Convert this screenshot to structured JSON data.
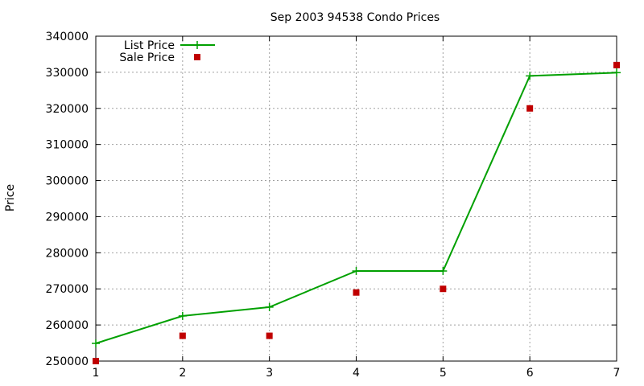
{
  "chart_data": {
    "type": "line",
    "title": "Sep 2003 94538 Condo Prices",
    "xlabel": "",
    "ylabel": "Price",
    "x": [
      1,
      2,
      3,
      4,
      5,
      6,
      7
    ],
    "xlim": [
      1,
      7
    ],
    "ylim": [
      250000,
      340000
    ],
    "xticks": [
      "1",
      "2",
      "3",
      "4",
      "5",
      "6",
      "7"
    ],
    "yticks": [
      "250000",
      "260000",
      "270000",
      "280000",
      "290000",
      "300000",
      "310000",
      "320000",
      "330000",
      "340000"
    ],
    "grid": true,
    "legend_position": "top-left",
    "series": [
      {
        "name": "List Price",
        "style": "linespoints",
        "marker": "plus",
        "color": "#00a000",
        "values": [
          254900,
          262500,
          264950,
          274950,
          274950,
          329000,
          329900
        ]
      },
      {
        "name": "Sale Price",
        "style": "points",
        "marker": "square",
        "color": "#c00000",
        "values": [
          250000,
          257000,
          257000,
          269000,
          270000,
          320000,
          332000
        ]
      }
    ]
  }
}
